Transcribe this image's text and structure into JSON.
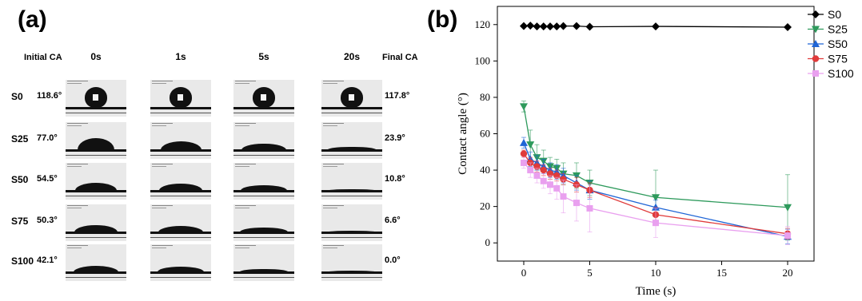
{
  "panel_a": {
    "label": "(a)",
    "initial_header": "Initial CA",
    "final_header": "Final CA",
    "time_headers": [
      "0s",
      "1s",
      "5s",
      "20s"
    ],
    "rows": [
      {
        "sample": "S0",
        "initial": "118.6°",
        "final": "117.8°",
        "drops": [
          1,
          1,
          1,
          1
        ]
      },
      {
        "sample": "S25",
        "initial": "77.0°",
        "final": "23.9°",
        "drops": [
          0.66,
          0.5,
          0.38,
          0.2
        ]
      },
      {
        "sample": "S50",
        "initial": "54.5°",
        "final": "10.8°",
        "drops": [
          0.45,
          0.4,
          0.3,
          0.1
        ]
      },
      {
        "sample": "S75",
        "initial": "50.3°",
        "final": "6.6°",
        "drops": [
          0.42,
          0.36,
          0.26,
          0.05
        ]
      },
      {
        "sample": "S100",
        "initial": "42.1°",
        "final": "0.0°",
        "drops": [
          0.36,
          0.3,
          0.2,
          0.03
        ]
      }
    ]
  },
  "panel_b": {
    "label": "(b)"
  },
  "chart_data": {
    "type": "line",
    "xlabel": "Time (s)",
    "ylabel": "Contact angle (°)",
    "xlim": [
      -2,
      22
    ],
    "ylim": [
      -10,
      130
    ],
    "xticks": [
      0,
      5,
      10,
      15,
      20
    ],
    "yticks": [
      0,
      20,
      40,
      60,
      80,
      100,
      120
    ],
    "legend_position": "top-right",
    "x": [
      0,
      0.5,
      1,
      1.5,
      2,
      2.5,
      3,
      4,
      5,
      10,
      20
    ],
    "series": [
      {
        "name": "S0",
        "color": "#000000",
        "marker": "diamond",
        "values": [
          119.2,
          119.4,
          119,
          119,
          119,
          119,
          119.2,
          119.2,
          118.8,
          119.0,
          118.6
        ],
        "errors": [
          0.5,
          0.5,
          0.5,
          0.5,
          0.5,
          0.5,
          0.5,
          0.5,
          0.5,
          0.5,
          0.5
        ]
      },
      {
        "name": "S25",
        "color": "#2e9a5c",
        "marker": "triangle-down",
        "values": [
          75,
          54,
          47,
          45,
          42,
          41,
          38,
          37,
          33,
          25,
          19.5
        ],
        "errors": [
          3,
          8,
          7,
          6,
          5,
          5,
          6,
          7,
          7,
          15,
          18
        ]
      },
      {
        "name": "S50",
        "color": "#1f65d6",
        "marker": "triangle-up",
        "values": [
          55,
          46,
          44,
          42,
          40,
          39,
          37,
          33,
          29,
          19.5,
          3.5
        ],
        "errors": [
          3,
          4,
          4,
          4,
          4,
          4,
          4,
          4,
          5,
          4,
          4
        ]
      },
      {
        "name": "S75",
        "color": "#e03b3b",
        "marker": "circle",
        "values": [
          49,
          44,
          42,
          40,
          38,
          37,
          35,
          32,
          29,
          15.5,
          5
        ],
        "errors": [
          2,
          3,
          3,
          3,
          3,
          3,
          3,
          4,
          4,
          4,
          3
        ]
      },
      {
        "name": "S100",
        "color": "#e9a0ef",
        "marker": "square",
        "values": [
          44,
          40,
          37,
          34,
          32,
          30,
          25.5,
          22,
          19,
          11,
          4
        ],
        "errors": [
          3,
          4,
          4,
          4,
          5,
          6,
          9,
          10,
          13,
          8,
          5
        ]
      }
    ]
  }
}
